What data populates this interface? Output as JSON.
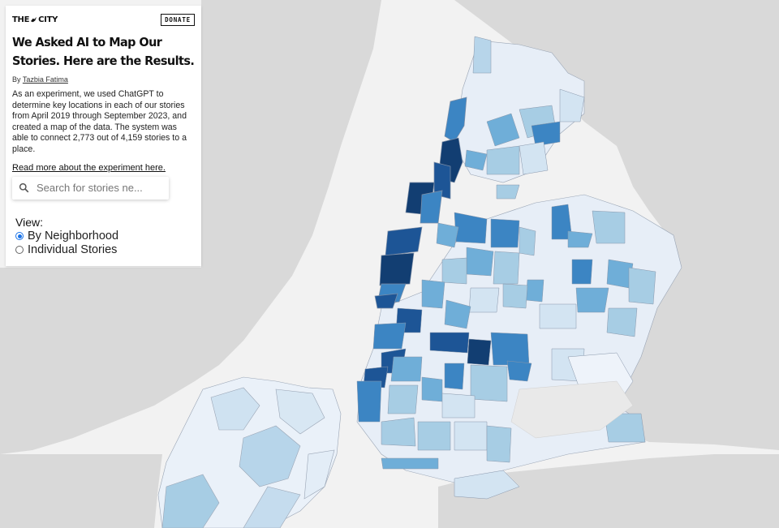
{
  "logo": {
    "text_left": "THE",
    "text_right": "CITY"
  },
  "header": {
    "donate_label": "DONATE"
  },
  "article": {
    "title": "We Asked AI to Map Our Stories. Here are the Results.",
    "byline_prefix": "By",
    "author": "Tazbia Fatima",
    "description": "As an experiment, we used ChatGPT to determine key locations in each of our stories from April 2019 through September 2023, and created a map of the data. The system was able to connect 2,773 out of 4,159 stories to a place.",
    "read_more": "Read more about the experiment here."
  },
  "search": {
    "placeholder": "Search for stories ne..."
  },
  "view": {
    "label": "View:",
    "options": [
      {
        "label": "By Neighborhood",
        "selected": true
      },
      {
        "label": "Individual Stories",
        "selected": false
      }
    ]
  },
  "map": {
    "water_color": "#f2f2f2",
    "land_color": "#d9d9d9",
    "choropleth_scale": [
      "#eef3fa",
      "#d3e4f2",
      "#a7cde4",
      "#6faed8",
      "#3c85c3",
      "#1d5596",
      "#123e72"
    ]
  }
}
